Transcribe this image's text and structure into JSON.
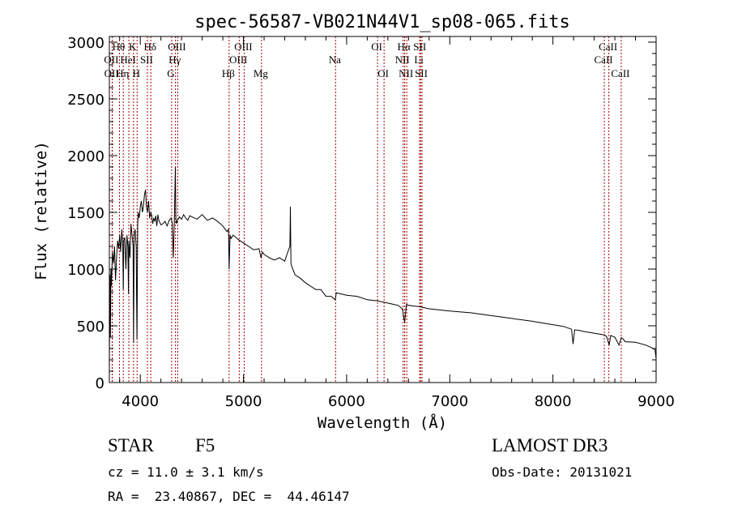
{
  "chart_data": {
    "type": "line",
    "title": "spec-56587-VB021N44V1_sp08-065.fits",
    "xlabel": "Wavelength (Å)",
    "ylabel": "Flux (relative)",
    "xlim": [
      3700,
      9000
    ],
    "ylim": [
      0,
      3050
    ],
    "xticks": [
      4000,
      5000,
      6000,
      7000,
      8000,
      9000
    ],
    "yticks": [
      0,
      500,
      1000,
      1500,
      2000,
      2500,
      3000
    ],
    "series": [
      {
        "name": "flux",
        "x": [
          3700,
          3705,
          3710,
          3715,
          3720,
          3730,
          3740,
          3750,
          3760,
          3770,
          3780,
          3790,
          3800,
          3810,
          3820,
          3830,
          3835,
          3840,
          3850,
          3860,
          3870,
          3880,
          3885,
          3890,
          3900,
          3910,
          3920,
          3930,
          3935,
          3940,
          3950,
          3960,
          3968,
          3975,
          3980,
          3990,
          4000,
          4010,
          4020,
          4030,
          4040,
          4050,
          4060,
          4070,
          4080,
          4090,
          4101,
          4110,
          4120,
          4130,
          4140,
          4150,
          4160,
          4170,
          4180,
          4200,
          4220,
          4240,
          4260,
          4280,
          4300,
          4310,
          4320,
          4330,
          4340,
          4345,
          4350,
          4360,
          4380,
          4400,
          4420,
          4440,
          4460,
          4480,
          4500,
          4550,
          4600,
          4650,
          4700,
          4750,
          4800,
          4840,
          4855,
          4861,
          4870,
          4880,
          4900,
          4950,
          5000,
          5050,
          5100,
          5150,
          5170,
          5184,
          5200,
          5250,
          5300,
          5350,
          5400,
          5430,
          5450,
          5455,
          5460,
          5470,
          5500,
          5550,
          5600,
          5650,
          5700,
          5750,
          5800,
          5850,
          5890,
          5900,
          5950,
          6000,
          6100,
          6200,
          6300,
          6400,
          6450,
          6500,
          6540,
          6563,
          6580,
          6600,
          6700,
          6800,
          6900,
          7000,
          7200,
          7400,
          7600,
          7800,
          8000,
          8100,
          8150,
          8180,
          8195,
          8210,
          8250,
          8300,
          8400,
          8500,
          8520,
          8545,
          8560,
          8600,
          8640,
          8662,
          8680,
          8700,
          8800,
          8900,
          8950,
          8990,
          9000
        ],
        "values": [
          80,
          950,
          400,
          1000,
          850,
          1150,
          1050,
          1200,
          900,
          1100,
          1250,
          1180,
          1300,
          1150,
          1350,
          1200,
          820,
          1250,
          1280,
          1000,
          1300,
          1200,
          780,
          1250,
          1100,
          1400,
          1300,
          1200,
          350,
          1300,
          1350,
          1200,
          380,
          1400,
          1500,
          1450,
          1550,
          1600,
          1500,
          1550,
          1650,
          1700,
          1550,
          1500,
          1600,
          1450,
          1500,
          1480,
          1400,
          1450,
          1420,
          1470,
          1380,
          1480,
          1430,
          1390,
          1400,
          1420,
          1380,
          1430,
          1450,
          1400,
          1100,
          1420,
          1900,
          1450,
          1400,
          1430,
          1460,
          1440,
          1480,
          1450,
          1430,
          1470,
          1460,
          1440,
          1480,
          1430,
          1450,
          1420,
          1380,
          1330,
          1350,
          1000,
          1300,
          1270,
          1300,
          1260,
          1230,
          1200,
          1170,
          1180,
          1100,
          1150,
          1130,
          1100,
          1080,
          1100,
          1070,
          1150,
          1200,
          1550,
          1050,
          1020,
          950,
          920,
          880,
          850,
          820,
          820,
          760,
          760,
          730,
          790,
          780,
          770,
          760,
          730,
          720,
          700,
          690,
          680,
          650,
          530,
          690,
          680,
          670,
          650,
          640,
          630,
          615,
          590,
          565,
          540,
          510,
          495,
          480,
          470,
          340,
          465,
          460,
          450,
          435,
          420,
          405,
          330,
          415,
          400,
          330,
          395,
          385,
          360,
          355,
          330,
          310,
          290,
          210
        ]
      }
    ],
    "line_labels": [
      {
        "name": "H-theta",
        "text": "Hθ",
        "x": 3798,
        "row": 1
      },
      {
        "name": "OII-a",
        "text": "OII",
        "x": 3727,
        "row": 2
      },
      {
        "name": "OII-b",
        "text": "OII",
        "x": 3729,
        "row": 3
      },
      {
        "name": "H-eta",
        "text": "Hη",
        "x": 3835,
        "row": 3
      },
      {
        "name": "HeI",
        "text": "HeI",
        "x": 3889,
        "row": 2
      },
      {
        "name": "K",
        "text": "K",
        "x": 3934,
        "row": 1
      },
      {
        "name": "SII-a",
        "text": "SII",
        "x": 4069,
        "row": 2
      },
      {
        "name": "H",
        "text": "H",
        "x": 3969,
        "row": 3
      },
      {
        "name": "H-delta",
        "text": "Hδ",
        "x": 4102,
        "row": 1
      },
      {
        "name": "OIII-4363",
        "text": "OIII",
        "x": 4363,
        "row": 1
      },
      {
        "name": "H-gamma",
        "text": "Hγ",
        "x": 4341,
        "row": 2
      },
      {
        "name": "G",
        "text": "G",
        "x": 4304,
        "row": 3
      },
      {
        "name": "OIII-5007",
        "text": "OIII",
        "x": 5007,
        "row": 1
      },
      {
        "name": "OIII-4959",
        "text": "OIII",
        "x": 4959,
        "row": 2
      },
      {
        "name": "H-beta",
        "text": "Hβ",
        "x": 4861,
        "row": 3
      },
      {
        "name": "Mg",
        "text": "Mg",
        "x": 5175,
        "row": 3
      },
      {
        "name": "Na",
        "text": "Na",
        "x": 5893,
        "row": 2
      },
      {
        "name": "OI-6300",
        "text": "OI",
        "x": 6300,
        "row": 1
      },
      {
        "name": "OI-6363",
        "text": "OI",
        "x": 6363,
        "row": 3
      },
      {
        "name": "H-alpha",
        "text": "Hα",
        "x": 6563,
        "row": 1
      },
      {
        "name": "NII-a",
        "text": "NII",
        "x": 6548,
        "row": 2
      },
      {
        "name": "NII-b",
        "text": "NII",
        "x": 6583,
        "row": 3
      },
      {
        "name": "SII-b",
        "text": "SII",
        "x": 6717,
        "row": 1
      },
      {
        "name": "Li",
        "text": "Li",
        "x": 6708,
        "row": 2
      },
      {
        "name": "SII-c",
        "text": "SII",
        "x": 6731,
        "row": 3
      },
      {
        "name": "CaII-a",
        "text": "CaII",
        "x": 8542,
        "row": 1
      },
      {
        "name": "CaII-b",
        "text": "CaII",
        "x": 8498,
        "row": 2
      },
      {
        "name": "CaII-c",
        "text": "CaII",
        "x": 8662,
        "row": 3
      }
    ],
    "line_markers": [
      3727,
      3729,
      3798,
      3835,
      3889,
      3934,
      3969,
      4069,
      4102,
      4304,
      4341,
      4363,
      4861,
      4959,
      5007,
      5175,
      5893,
      6300,
      6363,
      6548,
      6563,
      6583,
      6708,
      6717,
      6731,
      8498,
      8542,
      8662
    ],
    "marker_color": "#aa0000"
  },
  "info": {
    "class": "STAR",
    "subclass": "F5",
    "survey": "LAMOST DR3",
    "cz": "cz = 11.0 ± 3.1 km/s",
    "obs_date": "Obs-Date: 20131021",
    "radec": "RA =  23.40867, DEC =  44.46147"
  }
}
